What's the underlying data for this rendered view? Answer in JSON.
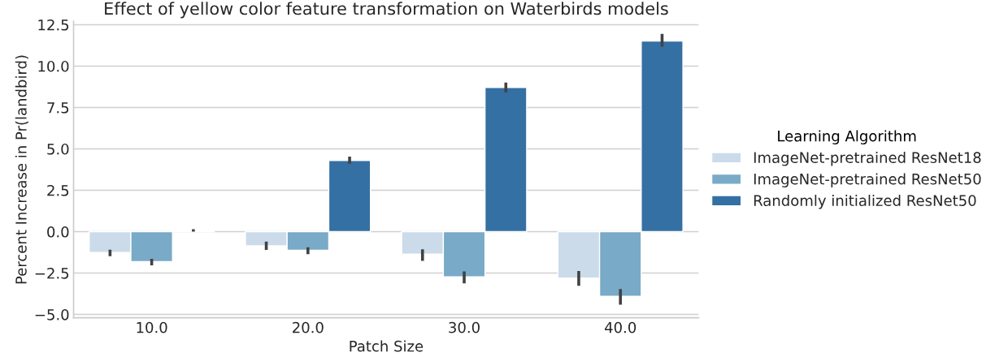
{
  "chart_data": {
    "type": "bar",
    "title": "Effect of yellow color feature transformation on Waterbirds models",
    "xlabel": "Patch Size",
    "ylabel": "Percent Increase in Pr(landbird)",
    "legend_title": "Learning Algorithm",
    "categories": [
      "10.0",
      "20.0",
      "30.0",
      "40.0"
    ],
    "series": [
      {
        "name": "ImageNet-pretrained ResNet18",
        "color": "#cbdbea",
        "values": [
          -1.26,
          -0.86,
          -1.36,
          -2.8
        ],
        "errors": [
          [
            -1.48,
            -1.09
          ],
          [
            -1.1,
            -0.6
          ],
          [
            -1.76,
            -1.07
          ],
          [
            -3.27,
            -2.38
          ]
        ]
      },
      {
        "name": "ImageNet-pretrained ResNet50",
        "color": "#79aac8",
        "values": [
          -1.81,
          -1.12,
          -2.73,
          -3.91
        ],
        "errors": [
          [
            -2.03,
            -1.64
          ],
          [
            -1.36,
            -0.94
          ],
          [
            -3.12,
            -2.4
          ],
          [
            -4.41,
            -3.47
          ]
        ]
      },
      {
        "name": "Randomly initialized ResNet50",
        "color": "#3470a3",
        "values": [
          0.05,
          4.3,
          8.71,
          11.51
        ],
        "errors": [
          [
            0.0,
            0.15
          ],
          [
            4.11,
            4.53
          ],
          [
            8.42,
            9.01
          ],
          [
            11.17,
            11.95
          ]
        ]
      }
    ],
    "ylim": [
      -5.2,
      12.7
    ],
    "yticks": [
      {
        "value": -5,
        "label": "−5.0"
      },
      {
        "value": -2.5,
        "label": "−2.5"
      },
      {
        "value": 0,
        "label": "0.0"
      },
      {
        "value": 2.5,
        "label": "2.5"
      },
      {
        "value": 5,
        "label": "5.0"
      },
      {
        "value": 7.5,
        "label": "7.5"
      },
      {
        "value": 10,
        "label": "10.0"
      },
      {
        "value": 12.5,
        "label": "12.5"
      }
    ],
    "grid": "y",
    "legend": "right"
  }
}
